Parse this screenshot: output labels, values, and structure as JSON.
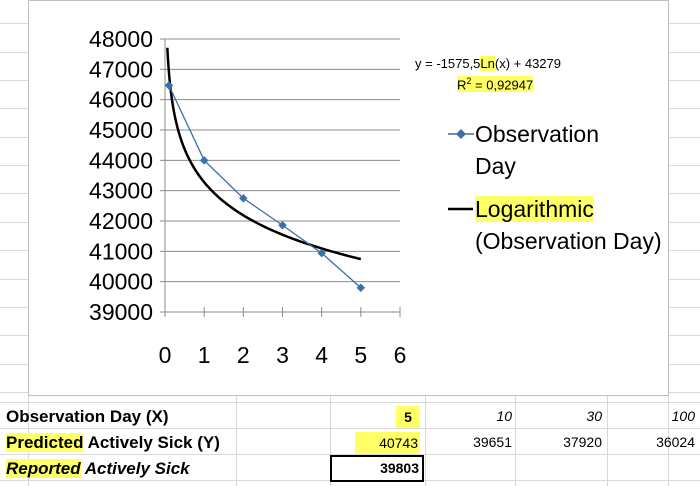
{
  "colors": {
    "highlight": "#ffff66",
    "observation": "#3a6fa8",
    "trendline": "#000000",
    "gridline": "#d9d9d9"
  },
  "chart_data": {
    "type": "scatter",
    "x_ticks": [
      "0",
      "1",
      "2",
      "3",
      "4",
      "5",
      "6"
    ],
    "y_ticks": [
      "48000",
      "47000",
      "46000",
      "45000",
      "44000",
      "43000",
      "42000",
      "41000",
      "40000",
      "39000"
    ],
    "xlim": [
      0,
      6
    ],
    "ylim": [
      39000,
      48000
    ],
    "grid": true,
    "legend_placement": "right",
    "series": [
      {
        "name_main": "Observation",
        "name_rest": "Day",
        "x": [
          0.1,
          1,
          2,
          3,
          4,
          5
        ],
        "y": [
          46470,
          44000,
          42750,
          41860,
          40940,
          39800
        ]
      },
      {
        "name_main": "Logarithmic",
        "name_rest": "(Observation Day)",
        "type": "line",
        "style": "trendline"
      }
    ],
    "trendline": {
      "equation_prefix": "y = -1575,5",
      "equation_ln": "Ln",
      "equation_suffix": "(x) + 43279",
      "r2_base": "R",
      "r2_exp": "2",
      "r2_value": " = 0,92947",
      "a": -1575.5,
      "b": 43279
    }
  },
  "table": {
    "row1": {
      "label": "Observation Day (X)",
      "values": [
        "5",
        "10",
        "30",
        "100"
      ]
    },
    "row2": {
      "label_hl": "Predicted",
      "label_rest": " Actively Sick (Y)",
      "values": [
        "40743",
        "39651",
        "37920",
        "36024"
      ]
    },
    "row3": {
      "label_hl": "Reported",
      "label_rest": " Actively Sick",
      "value": "39803"
    }
  }
}
